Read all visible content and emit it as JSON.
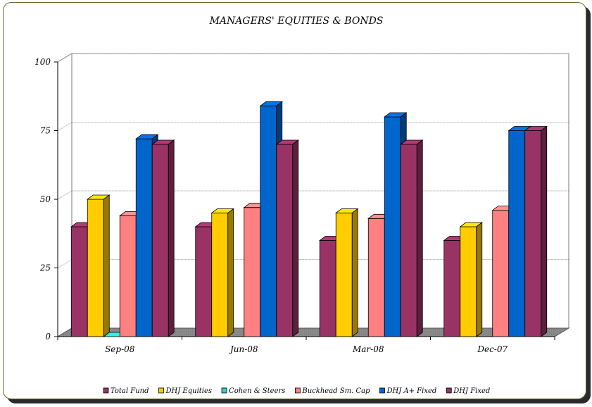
{
  "chart_data": {
    "type": "bar",
    "title": "MANAGERS' EQUITIES & BONDS",
    "xlabel": "",
    "ylabel": "",
    "ylim": [
      0,
      100
    ],
    "yticks": [
      0,
      25,
      50,
      75,
      100
    ],
    "categories": [
      "Sep-08",
      "Jun-08",
      "Mar-08",
      "Dec-07"
    ],
    "series": [
      {
        "name": "Total Fund",
        "color": "#993366",
        "values": [
          40,
          40,
          35,
          35
        ]
      },
      {
        "name": "DHJ Equities",
        "color": "#FFCC00",
        "values": [
          50,
          45,
          45,
          40
        ]
      },
      {
        "name": "Cohen & Steers",
        "color": "#33CCCC",
        "values": [
          0,
          null,
          null,
          null
        ]
      },
      {
        "name": "Buckhead Sm. Cap",
        "color": "#FF8080",
        "values": [
          44,
          47,
          43,
          46
        ]
      },
      {
        "name": "DHJ A+ Fixed",
        "color": "#0066CC",
        "values": [
          72,
          84,
          80,
          75
        ]
      },
      {
        "name": "DHJ Fixed",
        "color": "#993366",
        "values": [
          70,
          70,
          70,
          75
        ]
      }
    ],
    "grid": true,
    "legend": "bottom"
  }
}
